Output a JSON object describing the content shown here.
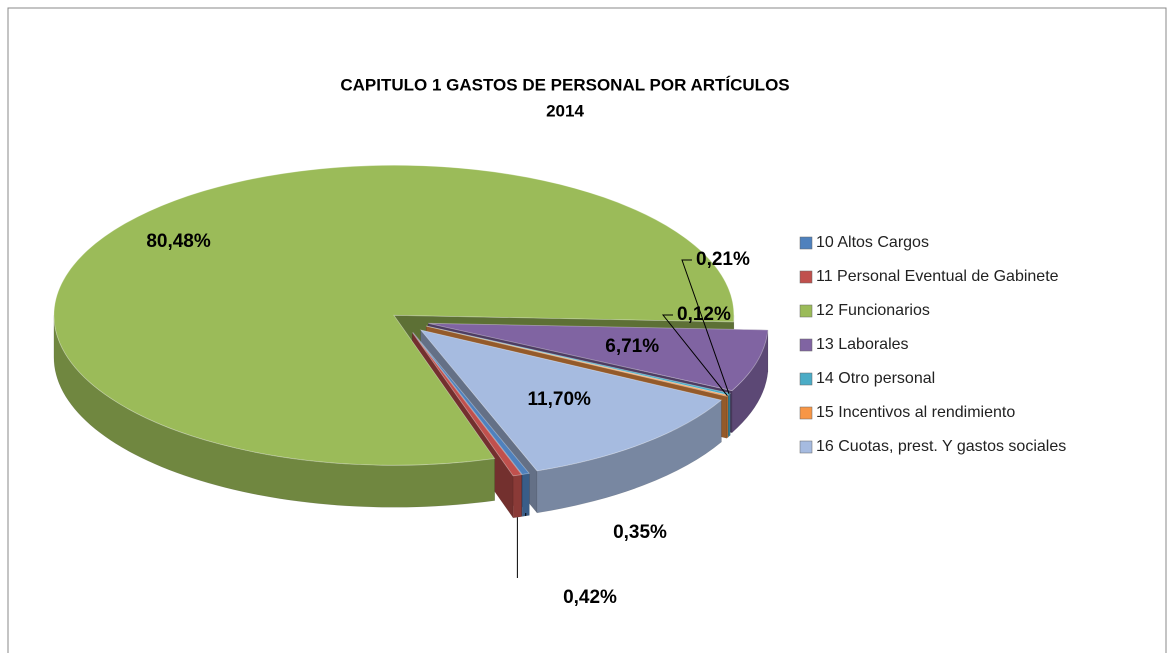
{
  "chart_data": {
    "type": "pie3d",
    "title": "CAPITULO 1 GASTOS DE PERSONAL POR ARTÍCULOS",
    "subtitle": "2014",
    "categories": [
      "10 Altos Cargos",
      "11 Personal Eventual de Gabinete",
      "12 Funcionarios",
      "13 Laborales",
      "14 Otro personal",
      "15 Incentivos al rendimiento",
      "16 Cuotas, prest. Y gastos sociales"
    ],
    "values": [
      0.35,
      0.42,
      80.48,
      6.71,
      0.21,
      0.12,
      11.7
    ],
    "value_labels": [
      "0,35%",
      "0,42%",
      "80,48%",
      "6,71%",
      "0,21%",
      "0,12%",
      "11,70%"
    ],
    "colors": [
      "#4f81bd",
      "#c0504d",
      "#9bbb59",
      "#8064a2",
      "#4bacc6",
      "#f79646",
      "#a6bbe0"
    ],
    "legend": "right"
  }
}
